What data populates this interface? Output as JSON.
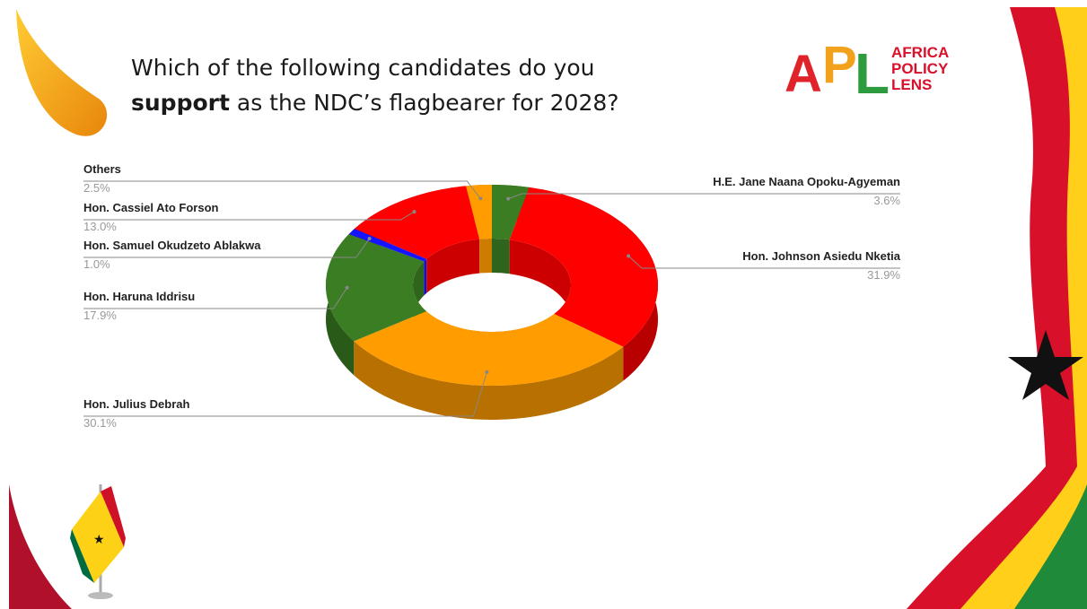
{
  "chart_data": {
    "type": "pie",
    "title": [
      "Which of the following candidates do you",
      "support",
      "as the NDC’s flagbearer for 2028?"
    ],
    "categories": [
      "H.E. Jane Naana Opoku-Agyeman",
      "Hon. Johnson Asiedu Nketia",
      "Hon. Julius Debrah",
      "Hon. Haruna Iddrisu",
      "Hon.  Samuel Okudzeto Ablakwa",
      "Hon. Cassiel Ato Forson",
      "Others"
    ],
    "values": [
      3.6,
      31.9,
      30.1,
      17.9,
      1.0,
      13.0,
      2.5
    ],
    "value_labels": [
      "3.6%",
      "31.9%",
      "30.1%",
      "17.9%",
      "1.0%",
      "13.0%",
      "2.5%"
    ],
    "colors": [
      "#3a7d22",
      "#ff0000",
      "#ff9c00",
      "#3a7d22",
      "#1414ff",
      "#ff0000",
      "#ff9c00"
    ],
    "donut": true,
    "three_d": true
  },
  "logo": {
    "letters": [
      "A",
      "P",
      "L"
    ],
    "name": [
      "AFRICA",
      "POLICY",
      "LENS"
    ]
  }
}
